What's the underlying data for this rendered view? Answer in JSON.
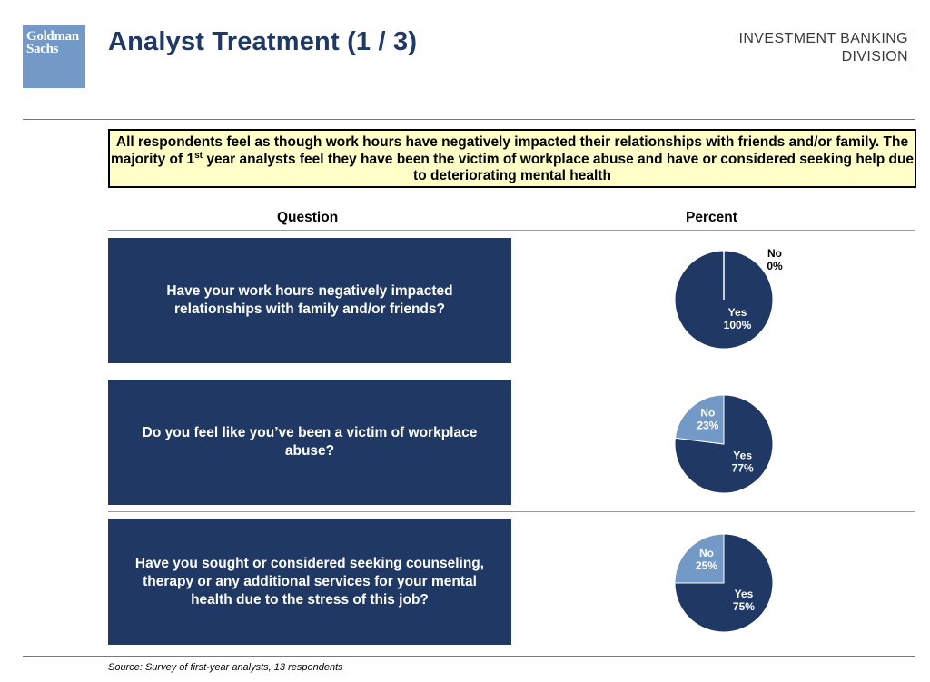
{
  "header": {
    "logo_line1": "Goldman",
    "logo_line2": "Sachs",
    "title": "Analyst Treatment (1 / 3)",
    "division_line1": "INVESTMENT BANKING",
    "division_line2": "DIVISION"
  },
  "summary": {
    "part1": "All respondents feel as though work hours have negatively impacted their relationships with friends and/or family.  The majority of 1",
    "superscript": "st",
    "part2": " year analysts feel they have been the victim of workplace abuse and have or considered seeking help due to deteriorating mental health"
  },
  "columns": {
    "question": "Question",
    "percent": "Percent"
  },
  "questions": [
    {
      "text": "Have your work hours negatively impacted relationships with family and/or friends?"
    },
    {
      "text": "Do you feel like you’ve been a victim of workplace abuse?"
    },
    {
      "text": "Have you sought or considered seeking counseling, therapy or any additional services for your mental health due to the stress of this job?"
    }
  ],
  "chart_data": [
    {
      "type": "pie",
      "slices": [
        {
          "label": "Yes",
          "value": 100,
          "value_label": "100%",
          "color": "#1f3864"
        },
        {
          "label": "No",
          "value": 0,
          "value_label": "0%",
          "color": "#7399c6"
        }
      ]
    },
    {
      "type": "pie",
      "slices": [
        {
          "label": "Yes",
          "value": 77,
          "value_label": "77%",
          "color": "#1f3864"
        },
        {
          "label": "No",
          "value": 23,
          "value_label": "23%",
          "color": "#7399c6"
        }
      ]
    },
    {
      "type": "pie",
      "slices": [
        {
          "label": "Yes",
          "value": 75,
          "value_label": "75%",
          "color": "#1f3864"
        },
        {
          "label": "No",
          "value": 25,
          "value_label": "25%",
          "color": "#7399c6"
        }
      ]
    }
  ],
  "source": "Source: Survey of first-year analysts, 13 respondents"
}
